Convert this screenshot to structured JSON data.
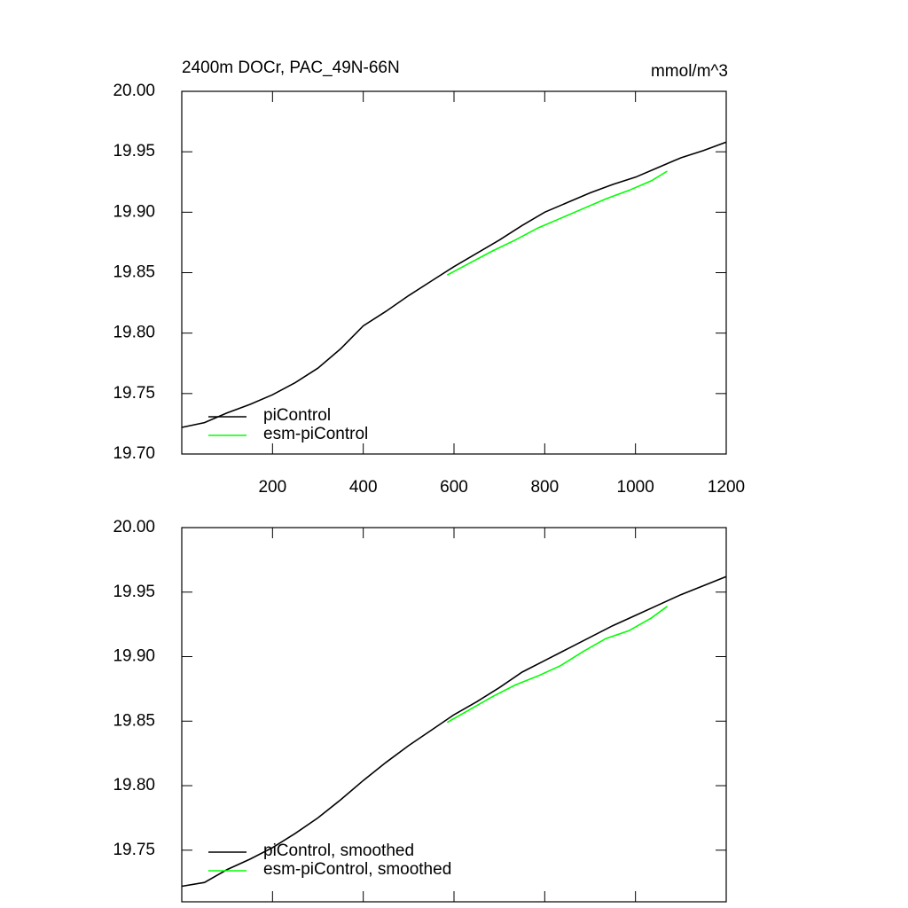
{
  "chart_data": [
    {
      "type": "line",
      "title": "2400m DOCr, PAC_49N-66N",
      "units": "mmol/m^3",
      "xlim": [
        0,
        1200
      ],
      "xticks": [
        200,
        400,
        600,
        800,
        1000,
        1200
      ],
      "ylim": [
        19.7,
        20.0
      ],
      "yticks": [
        {
          "value": 19.7,
          "label": "19.70"
        },
        {
          "value": 19.75,
          "label": "19.75"
        },
        {
          "value": 19.8,
          "label": "19.80"
        },
        {
          "value": 19.85,
          "label": "19.85"
        },
        {
          "value": 19.9,
          "label": "19.90"
        },
        {
          "value": 19.95,
          "label": "19.95"
        },
        {
          "value": 20.0,
          "label": "20.00"
        }
      ],
      "legend": "lower left",
      "series": [
        {
          "name": "piControl",
          "color": "#000000",
          "x": [
            0,
            50,
            100,
            150,
            200,
            250,
            300,
            350,
            400,
            450,
            500,
            550,
            600,
            650,
            700,
            750,
            800,
            850,
            900,
            950,
            1000,
            1050,
            1100,
            1150,
            1200
          ],
          "values": [
            19.722,
            19.726,
            19.734,
            19.741,
            19.749,
            19.759,
            19.771,
            19.787,
            19.806,
            19.818,
            19.831,
            19.843,
            19.855,
            19.866,
            19.877,
            19.889,
            19.9,
            19.908,
            19.916,
            19.923,
            19.929,
            19.937,
            19.945,
            19.951,
            19.958
          ]
        },
        {
          "name": "esm-piControl",
          "color": "#00ff00",
          "x": [
            585,
            635,
            685,
            735,
            785,
            835,
            885,
            935,
            985,
            1035,
            1070
          ],
          "values": [
            19.848,
            19.858,
            19.868,
            19.877,
            19.887,
            19.895,
            19.903,
            19.911,
            19.918,
            19.926,
            19.934
          ]
        }
      ]
    },
    {
      "type": "line",
      "xlim": [
        0,
        1200
      ],
      "xticks": [
        200,
        400,
        600,
        800,
        1000,
        1200
      ],
      "ylim": [
        19.71,
        20.0
      ],
      "yticks": [
        {
          "value": 19.75,
          "label": "19.75"
        },
        {
          "value": 19.8,
          "label": "19.80"
        },
        {
          "value": 19.85,
          "label": "19.85"
        },
        {
          "value": 19.9,
          "label": "19.90"
        },
        {
          "value": 19.95,
          "label": "19.95"
        },
        {
          "value": 20.0,
          "label": "20.00"
        }
      ],
      "legend": "lower left",
      "series": [
        {
          "name": "piControl, smoothed",
          "color": "#000000",
          "x": [
            0,
            50,
            100,
            150,
            200,
            250,
            300,
            350,
            400,
            450,
            500,
            550,
            600,
            650,
            700,
            750,
            800,
            850,
            900,
            950,
            1000,
            1050,
            1100,
            1150,
            1200
          ],
          "values": [
            19.722,
            19.725,
            19.735,
            19.743,
            19.752,
            19.763,
            19.775,
            19.789,
            19.804,
            19.818,
            19.831,
            19.843,
            19.855,
            19.865,
            19.876,
            19.888,
            19.897,
            19.906,
            19.915,
            19.924,
            19.932,
            19.94,
            19.948,
            19.955,
            19.962
          ]
        },
        {
          "name": "esm-piControl, smoothed",
          "color": "#00ff00",
          "x": [
            585,
            635,
            685,
            735,
            785,
            835,
            885,
            935,
            985,
            1035,
            1070
          ],
          "values": [
            19.849,
            19.859,
            19.869,
            19.878,
            19.885,
            19.893,
            19.904,
            19.914,
            19.92,
            19.93,
            19.939
          ]
        }
      ]
    }
  ]
}
